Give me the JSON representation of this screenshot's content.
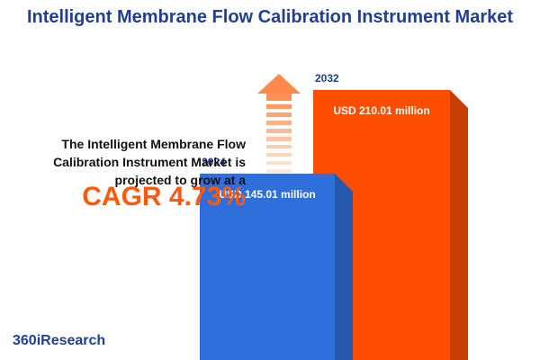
{
  "chart_data": {
    "type": "bar",
    "title": "Intelligent Membrane Flow Calibration Instrument Market",
    "description": "The Intelligent Membrane Flow Calibration Instrument Market is projected to grow at a",
    "highlight": "CAGR 4.73%",
    "brand": "360iResearch",
    "categories": [
      "2024",
      "2032"
    ],
    "values": [
      145.01,
      210.01
    ],
    "value_labels": [
      "USD 145.01 million",
      "USD 210.01 million"
    ],
    "colors": [
      "#2f6fdc",
      "#ff4d00"
    ]
  }
}
